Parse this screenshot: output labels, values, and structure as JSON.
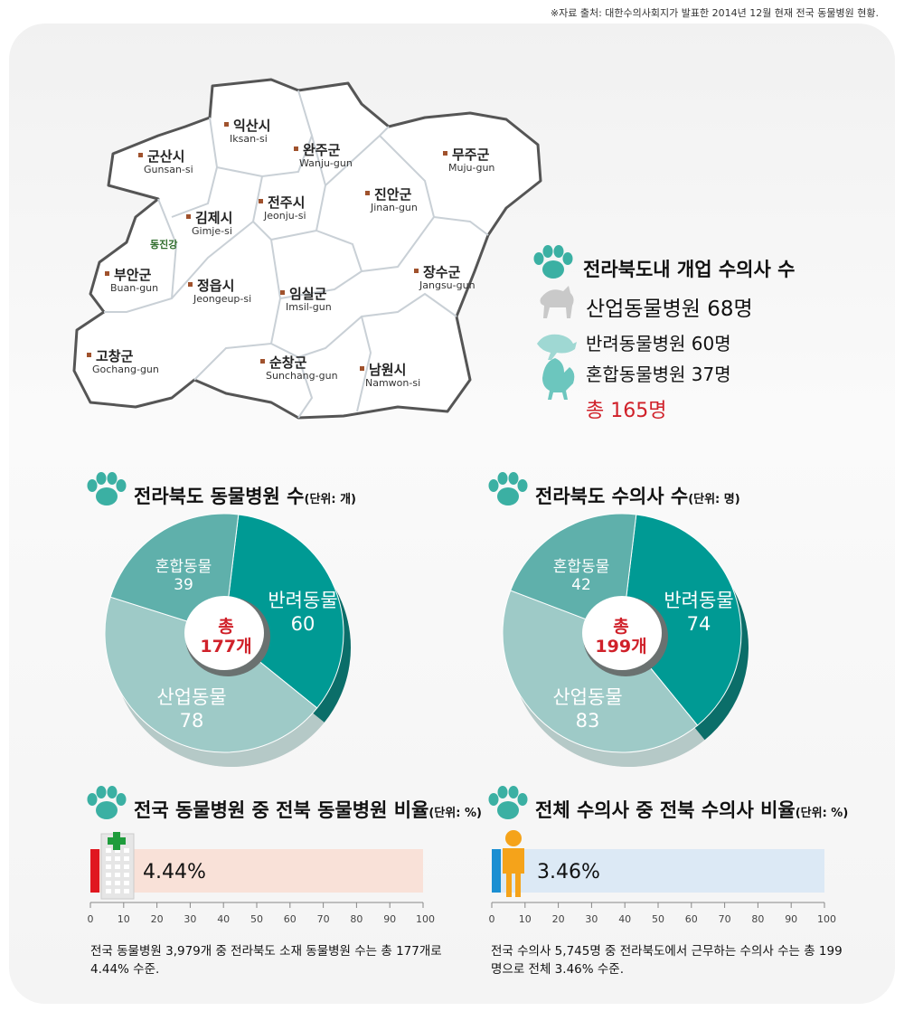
{
  "source_note": "※자료 출처: 대한수의사회지가 발표한 2014년 12월 현재 전국 동물병원 현황.",
  "map": {
    "regions": [
      {
        "name": "익산시",
        "en": "Iksan-si"
      },
      {
        "name": "군산시",
        "en": "Gunsan-si"
      },
      {
        "name": "완주군",
        "en": "Wanju-gun"
      },
      {
        "name": "무주군",
        "en": "Muju-gun"
      },
      {
        "name": "김제시",
        "en": "Gimje-si"
      },
      {
        "name": "전주시",
        "en": "Jeonju-si"
      },
      {
        "name": "진안군",
        "en": "Jinan-gun"
      },
      {
        "name": "부안군",
        "en": "Buan-gun"
      },
      {
        "name": "정읍시",
        "en": "Jeongeup-si"
      },
      {
        "name": "임실군",
        "en": "Imsil-gun"
      },
      {
        "name": "장수군",
        "en": "Jangsu-gun"
      },
      {
        "name": "고창군",
        "en": "Gochang-gun"
      },
      {
        "name": "순창군",
        "en": "Sunchang-gun"
      },
      {
        "name": "남원시",
        "en": "Namwon-si"
      }
    ],
    "river_label": "동진강"
  },
  "vets_legend": {
    "title": "전라북도내 개업 수의사 수",
    "industrial": "산업동물병원 68명",
    "companion": "반려동물병원 60명",
    "mixed": "혼합동물병원 37명",
    "total": "총 165명"
  },
  "pie1": {
    "title": "전라북도 동물병원 수",
    "unit": "(단위: 개)",
    "center_line1": "총",
    "center_line2": "177개",
    "labels": {
      "mixed_name": "혼합동물",
      "mixed_value": "39",
      "companion_name": "반려동물",
      "companion_value": "60",
      "industrial_name": "산업동물",
      "industrial_value": "78"
    }
  },
  "pie2": {
    "title": "전라북도 수의사 수",
    "unit": "(단위: 명)",
    "center_line1": "총",
    "center_line2": "199개",
    "labels": {
      "mixed_name": "혼합동물",
      "mixed_value": "42",
      "companion_name": "반려동물",
      "companion_value": "74",
      "industrial_name": "산업동물",
      "industrial_value": "83"
    }
  },
  "bar1": {
    "title": "전국 동물병원 중 전북 동물병원 비율",
    "unit": "(단위: %)",
    "value_label": "4.44%",
    "desc": "전국 동물병원 3,979개 중 전라북도 소재 동물병원 수는 총 177개로 4.44% 수준."
  },
  "bar2": {
    "title": "전체 수의사 중 전북 수의사 비율",
    "unit": "(단위: %)",
    "value_label": "3.46%",
    "desc": "전국 수의사 5,745명 중 전라북도에서 근무하는 수의사 수는 총 199명으로 전체 3.46% 수준."
  },
  "axis_ticks": [
    "0",
    "10",
    "20",
    "30",
    "40",
    "50",
    "60",
    "70",
    "80",
    "90",
    "100"
  ],
  "colors": {
    "companion": "#009a94",
    "mixed": "#5fb0ab",
    "industrial": "#9ecac7",
    "side_shadow": "#0b6e69",
    "total_red": "#d0212a",
    "bar1_bg": "#f9e1d8",
    "bar1_fill": "#e0171f",
    "bar2_bg": "#dce9f5",
    "bar2_fill": "#1b8fd2",
    "paw": "#3bb0a3"
  },
  "chart_data": [
    {
      "type": "pie",
      "title": "전라북도 동물병원 수",
      "unit": "개",
      "categories": [
        "반려동물",
        "산업동물",
        "혼합동물"
      ],
      "values": [
        60,
        78,
        39
      ],
      "total": 177
    },
    {
      "type": "pie",
      "title": "전라북도 수의사 수",
      "unit": "명",
      "categories": [
        "반려동물",
        "산업동물",
        "혼합동물"
      ],
      "values": [
        74,
        83,
        42
      ],
      "total": 199
    },
    {
      "type": "bar",
      "title": "전국 동물병원 중 전북 동물병원 비율",
      "unit": "%",
      "values": [
        4.44
      ],
      "xlim": [
        0,
        100
      ]
    },
    {
      "type": "bar",
      "title": "전체 수의사 중 전북 수의사 비율",
      "unit": "%",
      "values": [
        3.46
      ],
      "xlim": [
        0,
        100
      ]
    }
  ]
}
